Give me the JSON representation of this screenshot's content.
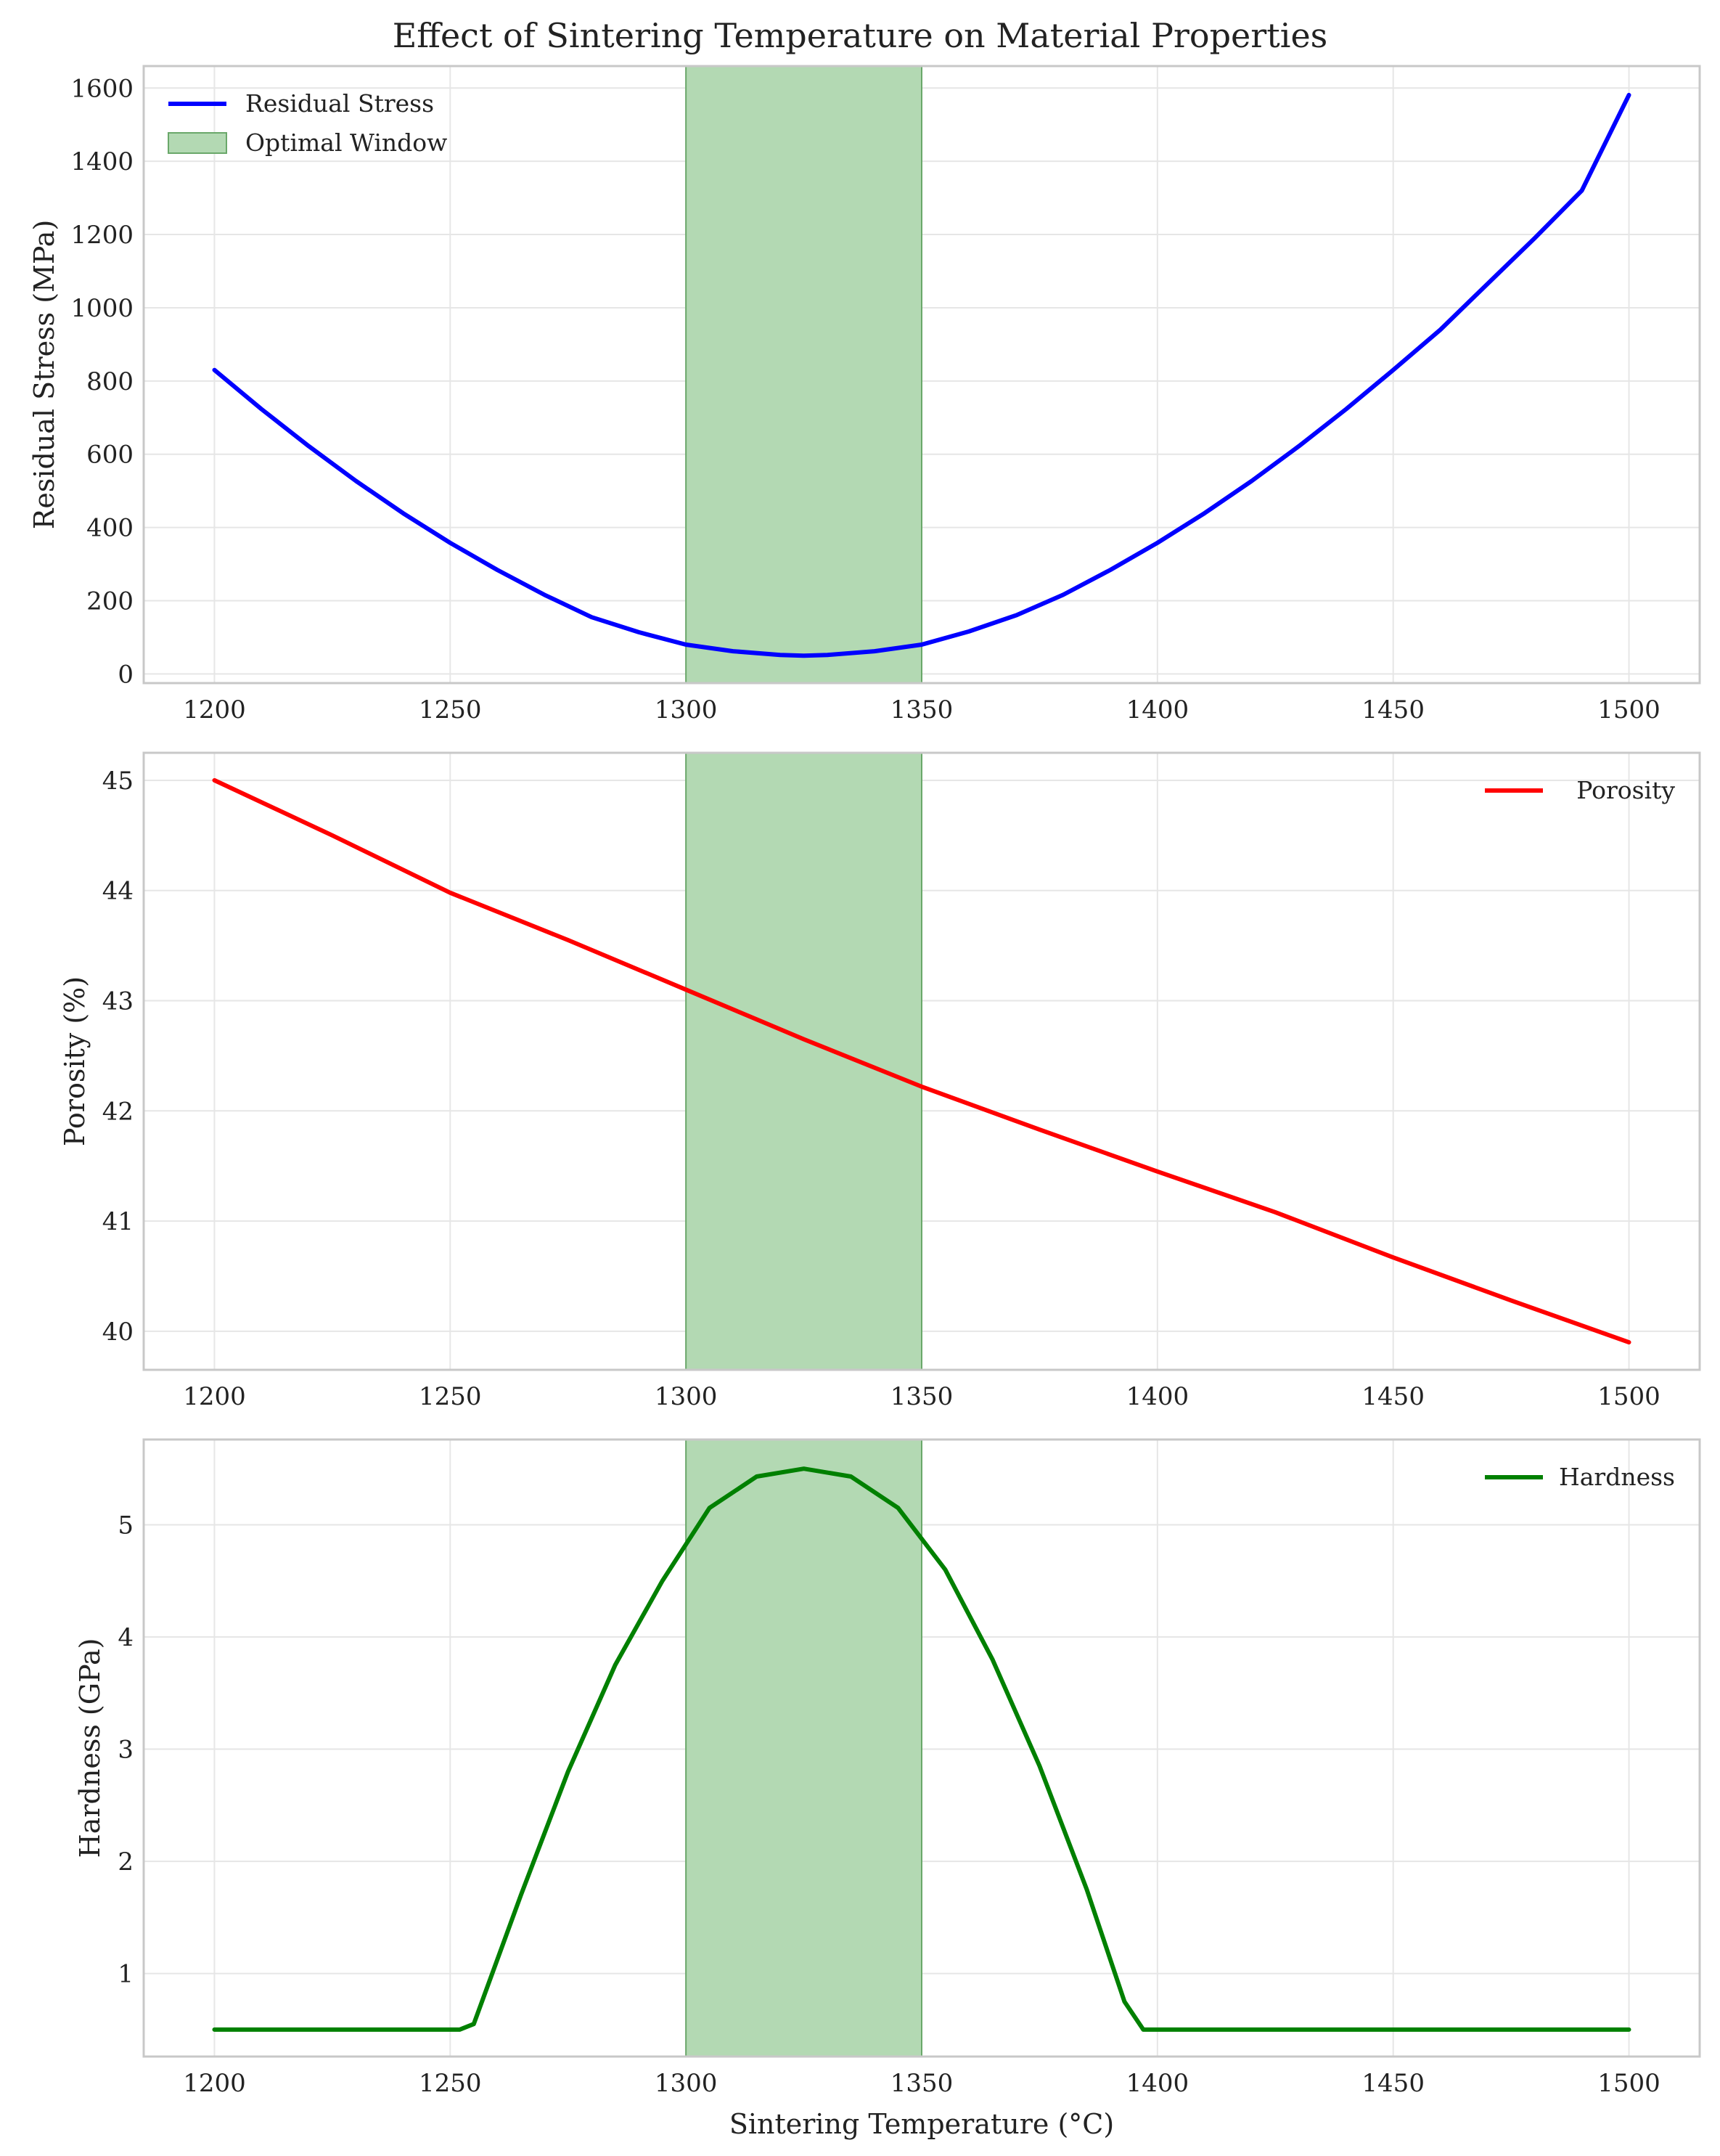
{
  "figure": {
    "title": "Effect of Sintering Temperature on Material Properties"
  },
  "colors": {
    "residual_stress": "#0000ff",
    "porosity": "#ff0000",
    "hardness": "#008000",
    "optimal_window_fill": "#b3d9b3",
    "optimal_window_edge": "#6aa86a",
    "grid": "#e6e6e6",
    "spine": "#c8c8c8"
  },
  "chart_data": [
    {
      "type": "line",
      "xlabel": "",
      "ylabel": "Residual Stress (MPa)",
      "xlim": [
        1185,
        1515
      ],
      "ylim": [
        -25,
        1660
      ],
      "xticks": [
        1200,
        1250,
        1300,
        1350,
        1400,
        1450,
        1500
      ],
      "yticks": [
        0,
        200,
        400,
        600,
        800,
        1000,
        1200,
        1400,
        1600
      ],
      "grid": true,
      "legend_position": "upper-left",
      "shaded_region": {
        "label": "Optimal Window",
        "x0": 1300,
        "x1": 1350
      },
      "series": [
        {
          "name": "Residual Stress",
          "color_key": "residual_stress",
          "x": [
            1200,
            1210,
            1220,
            1230,
            1240,
            1250,
            1260,
            1270,
            1280,
            1290,
            1300,
            1310,
            1320,
            1325,
            1330,
            1340,
            1350,
            1360,
            1370,
            1380,
            1390,
            1400,
            1410,
            1420,
            1430,
            1440,
            1450,
            1460,
            1470,
            1480,
            1490,
            1500
          ],
          "y": [
            830,
            723,
            622,
            527,
            439,
            358,
            284,
            216,
            155,
            114,
            80,
            62,
            52,
            50,
            52,
            62,
            80,
            116,
            160,
            216,
            284,
            358,
            439,
            527,
            622,
            723,
            830,
            940,
            1065,
            1190,
            1320,
            1581
          ]
        }
      ]
    },
    {
      "type": "line",
      "xlabel": "",
      "ylabel": "Porosity (%)",
      "xlim": [
        1185,
        1515
      ],
      "ylim": [
        39.65,
        45.25
      ],
      "xticks": [
        1200,
        1250,
        1300,
        1350,
        1400,
        1450,
        1500
      ],
      "yticks": [
        40,
        41,
        42,
        43,
        44,
        45
      ],
      "grid": true,
      "legend_position": "upper-right",
      "shaded_region": {
        "x0": 1300,
        "x1": 1350
      },
      "series": [
        {
          "name": "Porosity",
          "color_key": "porosity",
          "x": [
            1200,
            1225,
            1250,
            1275,
            1300,
            1325,
            1350,
            1375,
            1400,
            1425,
            1450,
            1475,
            1500
          ],
          "y": [
            45.0,
            44.5,
            43.98,
            43.55,
            43.1,
            42.65,
            42.22,
            41.83,
            41.45,
            41.08,
            40.67,
            40.28,
            39.9
          ]
        }
      ]
    },
    {
      "type": "line",
      "xlabel": "Sintering Temperature (°C)",
      "ylabel": "Hardness (GPa)",
      "xlim": [
        1185,
        1515
      ],
      "ylim": [
        0.26,
        5.76
      ],
      "xticks": [
        1200,
        1250,
        1300,
        1350,
        1400,
        1450,
        1500
      ],
      "yticks": [
        1,
        2,
        3,
        4,
        5
      ],
      "grid": true,
      "legend_position": "upper-right",
      "shaded_region": {
        "x0": 1300,
        "x1": 1350
      },
      "series": [
        {
          "name": "Hardness",
          "color_key": "hardness",
          "x": [
            1200,
            1225,
            1250,
            1252,
            1255,
            1265,
            1275,
            1285,
            1295,
            1305,
            1315,
            1325,
            1335,
            1345,
            1355,
            1365,
            1375,
            1385,
            1393,
            1397,
            1400,
            1450,
            1500
          ],
          "y": [
            0.5,
            0.5,
            0.5,
            0.5,
            0.55,
            1.7,
            2.8,
            3.75,
            4.5,
            5.15,
            5.43,
            5.5,
            5.43,
            5.15,
            4.6,
            3.8,
            2.85,
            1.75,
            0.75,
            0.5,
            0.5,
            0.5,
            0.5
          ]
        }
      ]
    }
  ]
}
